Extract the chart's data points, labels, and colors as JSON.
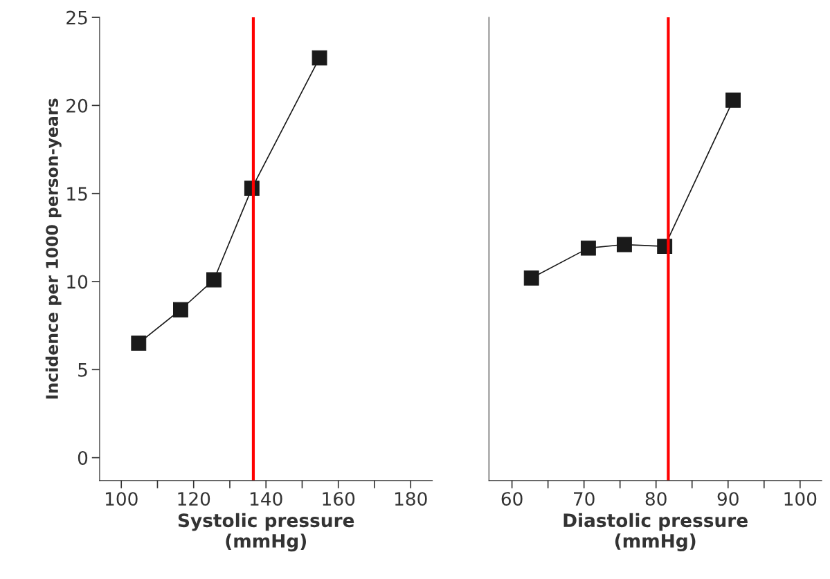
{
  "chart_data": [
    {
      "type": "line",
      "ylabel": "Incidence per 1000 person-years",
      "xlabel": "Systolic pressure\n(mmHg)",
      "x": [
        104.8,
        116.4,
        125.6,
        136.1,
        154.8
      ],
      "series": [
        {
          "color": "#1a1a1a",
          "values": [
            6.5,
            8.4,
            10.1,
            15.3,
            22.7
          ]
        }
      ],
      "xlim": [
        94,
        186
      ],
      "xticks": [
        100,
        {
          "value": 110,
          "label": null
        },
        120,
        {
          "value": 130,
          "label": null
        },
        140,
        {
          "value": 150,
          "label": null
        },
        160,
        {
          "value": 170,
          "label": null
        },
        180
      ],
      "ylim": [
        -1.3,
        25
      ],
      "yticks": [
        0,
        5,
        10,
        15,
        20,
        25
      ],
      "marker": "square",
      "line_style": "solid",
      "grid": false,
      "legend": false,
      "ref_lines": [
        {
          "axis": "x",
          "value": 136.5,
          "color": "#ff0000"
        }
      ]
    },
    {
      "type": "line",
      "xlabel": "Diastolic pressure\n(mmHg)",
      "x": [
        62.7,
        70.6,
        75.6,
        81.2,
        90.7
      ],
      "series": [
        {
          "color": "#1a1a1a",
          "values": [
            10.2,
            11.9,
            12.1,
            12.0,
            20.3
          ]
        }
      ],
      "xlim": [
        56.8,
        103
      ],
      "xticks": [
        60,
        {
          "value": 65,
          "label": null
        },
        70,
        {
          "value": 75,
          "label": null
        },
        80,
        {
          "value": 85,
          "label": null
        },
        90,
        {
          "value": 95,
          "label": null
        },
        100
      ],
      "ylim": [
        -1.3,
        25
      ],
      "tick_labels": "x",
      "marker": "square",
      "line_style": "solid",
      "grid": false,
      "legend": false,
      "ref_lines": [
        {
          "axis": "x",
          "value": 81.7,
          "color": "#ff0000"
        }
      ]
    }
  ]
}
